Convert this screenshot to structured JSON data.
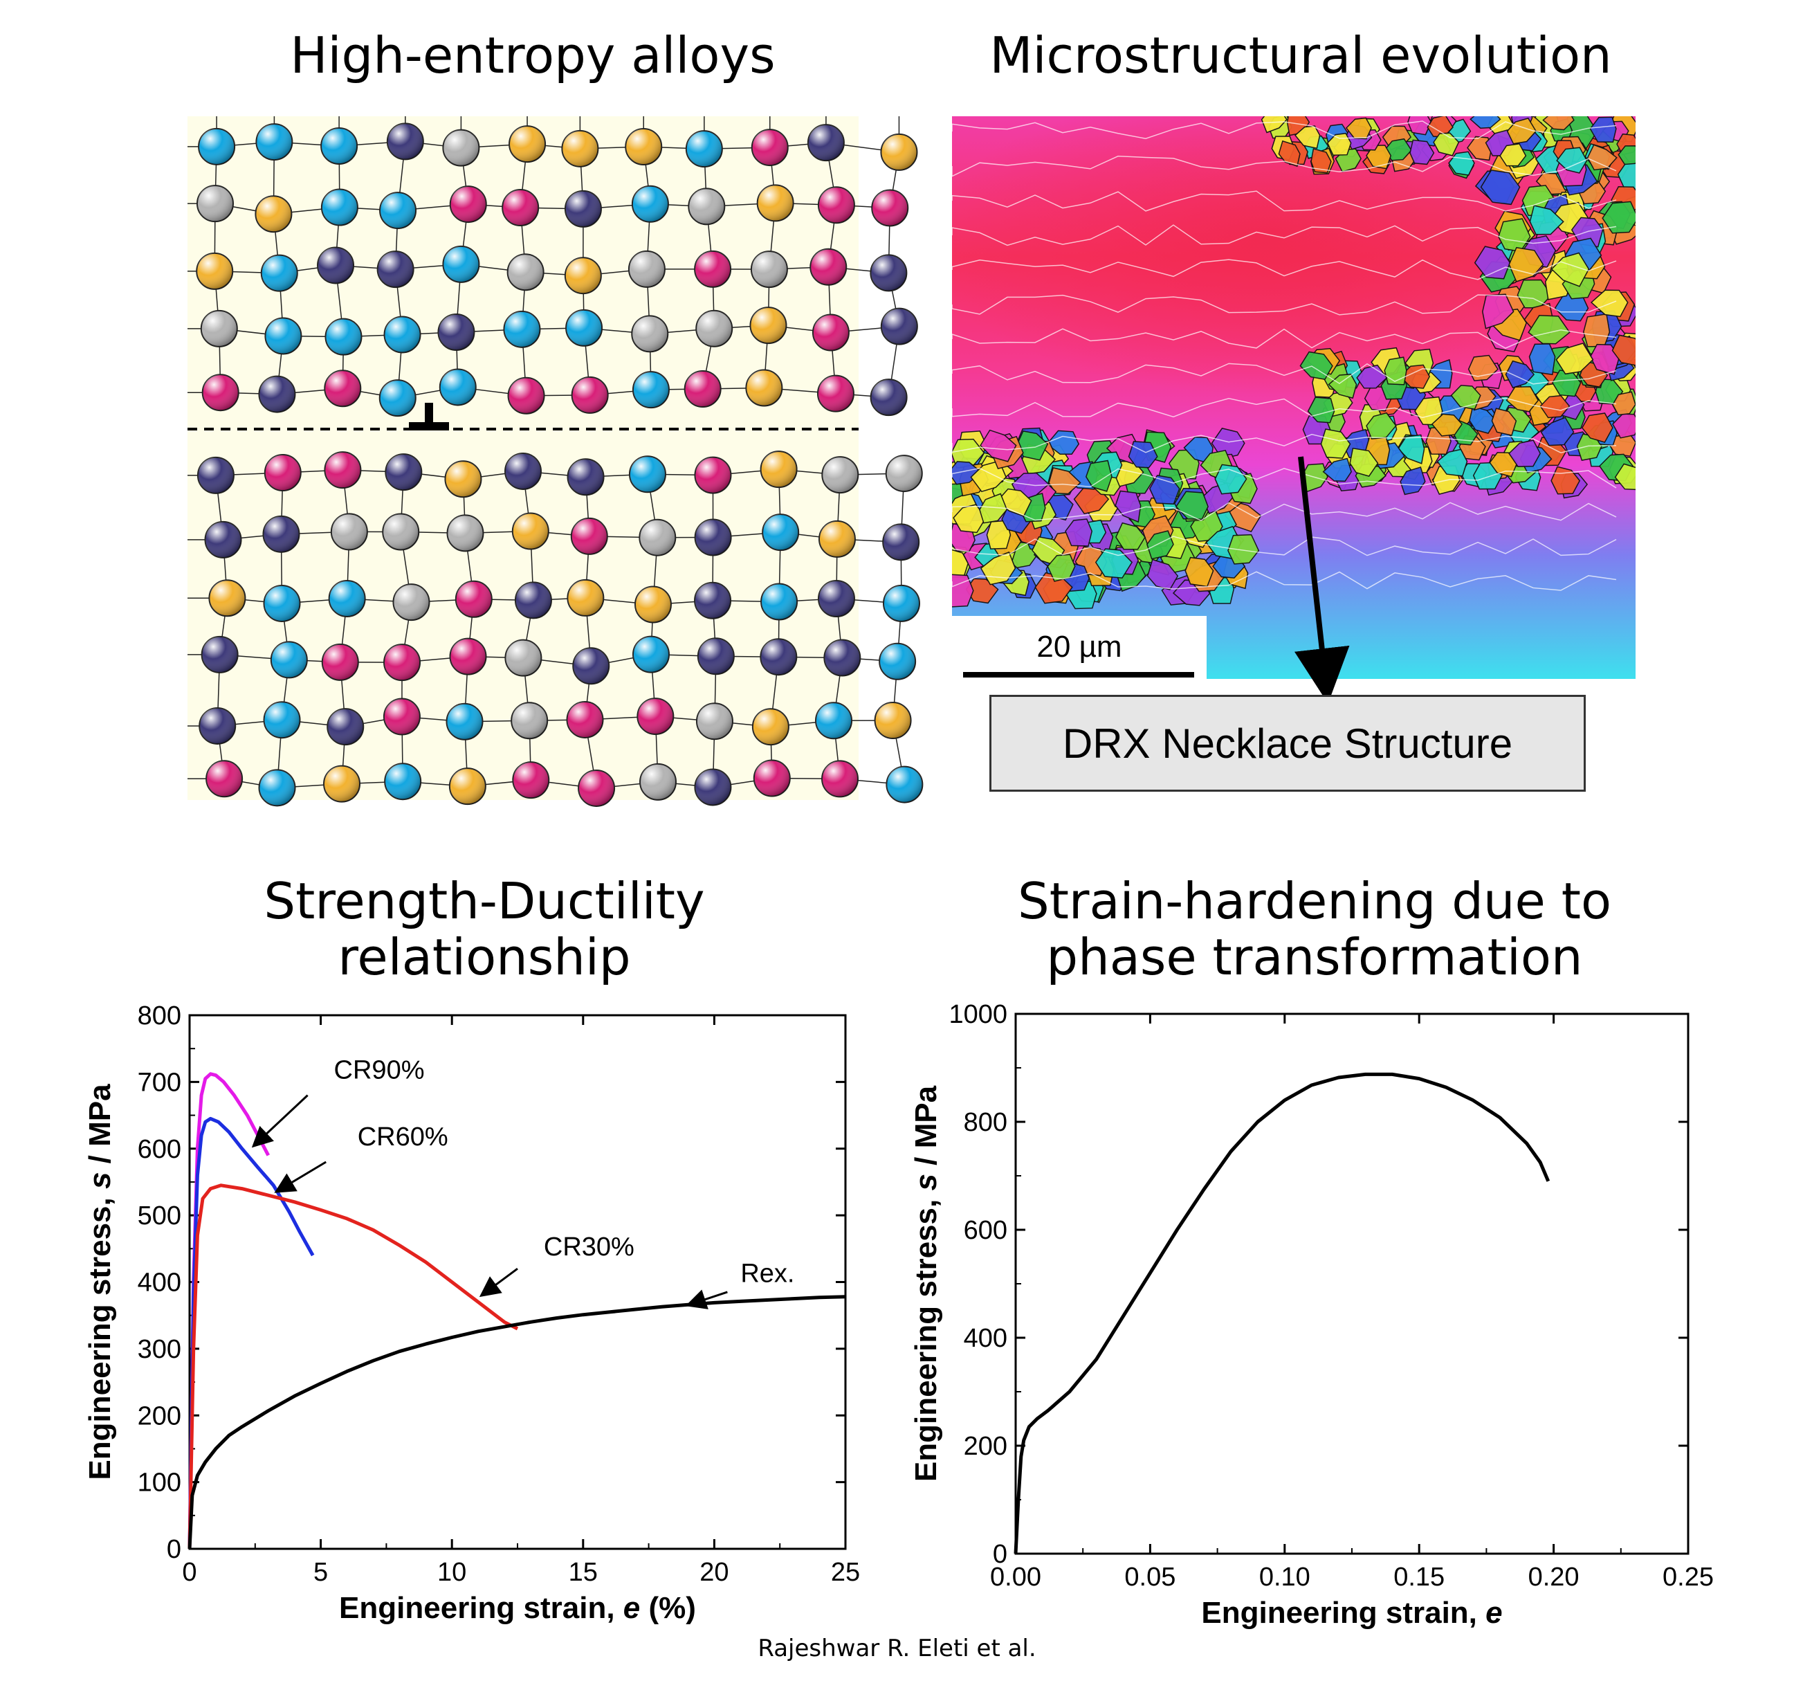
{
  "panels": {
    "top_left_title": "High-entropy alloys",
    "top_right_title": "Microstructural evolution",
    "bottom_left_title": "Strength-Ductility relationship",
    "bottom_right_title": "Strain-hardening due to phase transformation"
  },
  "micrograph": {
    "scale_bar_label": "20 µm",
    "box_label": "DRX Necklace  Structure"
  },
  "lattice": {
    "background": "#fefde8",
    "atom_colors": [
      "#3e3a7a",
      "#12a6e0",
      "#d81f78",
      "#f2b230",
      "#b3b3b3"
    ]
  },
  "credit": "Rajeshwar R. Eleti et al.",
  "chart_data": [
    {
      "type": "line",
      "xlabel_pre": "Engineering strain, ",
      "xlabel_sym": "e",
      "xlabel_post": " (%)",
      "ylabel_pre": "Engineering stress, ",
      "ylabel_sym": "s",
      "ylabel_post": " / MPa",
      "xlim": [
        0,
        25
      ],
      "ylim": [
        0,
        800
      ],
      "xticks": [
        "0",
        "5",
        "10",
        "15",
        "20",
        "25"
      ],
      "yticks": [
        "0",
        "100",
        "200",
        "300",
        "400",
        "500",
        "600",
        "700",
        "800"
      ],
      "grid": false,
      "annotations": [
        "CR90%",
        "CR60%",
        "CR30%",
        "Rex."
      ],
      "series": [
        {
          "name": "CR90%",
          "color": "#e41ae8",
          "x": [
            0,
            0.15,
            0.3,
            0.45,
            0.6,
            0.8,
            1.0,
            1.3,
            1.7,
            2.2,
            2.6,
            3.0
          ],
          "y": [
            0,
            400,
            600,
            680,
            705,
            712,
            710,
            700,
            680,
            650,
            620,
            590
          ]
        },
        {
          "name": "CR60%",
          "color": "#1c2ee0",
          "x": [
            0,
            0.15,
            0.3,
            0.45,
            0.6,
            0.8,
            1.1,
            1.5,
            2.0,
            2.6,
            3.2,
            3.8,
            4.2,
            4.7
          ],
          "y": [
            0,
            380,
            560,
            620,
            640,
            645,
            640,
            625,
            600,
            572,
            545,
            505,
            475,
            440
          ]
        },
        {
          "name": "CR30%",
          "color": "#e3231e",
          "x": [
            0,
            0.15,
            0.3,
            0.5,
            0.8,
            1.2,
            2,
            3,
            4,
            5,
            6,
            7,
            8,
            9,
            10,
            11,
            12,
            12.5
          ],
          "y": [
            0,
            300,
            470,
            525,
            540,
            545,
            540,
            530,
            520,
            508,
            495,
            478,
            455,
            430,
            400,
            370,
            340,
            330
          ]
        },
        {
          "name": "Rex.",
          "color": "#000000",
          "x": [
            0,
            0.1,
            0.3,
            0.6,
            1,
            1.5,
            2,
            3,
            4,
            5,
            6,
            7,
            8,
            9,
            10,
            11,
            12,
            13,
            14,
            15,
            16,
            17,
            18,
            19,
            20,
            21,
            22,
            23,
            24,
            25
          ],
          "y": [
            0,
            80,
            110,
            130,
            150,
            170,
            183,
            207,
            229,
            248,
            266,
            282,
            296,
            307,
            317,
            326,
            333,
            340,
            346,
            351,
            355,
            359,
            363,
            366,
            369,
            371,
            373,
            375,
            377,
            378
          ]
        }
      ]
    },
    {
      "type": "line",
      "xlabel_pre": "Engineering strain, ",
      "xlabel_sym": "e",
      "xlabel_post": "",
      "ylabel_pre": "Engineering stress, ",
      "ylabel_sym": "s",
      "ylabel_post": " / MPa",
      "xlim": [
        0,
        0.25
      ],
      "ylim": [
        0,
        1000
      ],
      "xticks": [
        "0.00",
        "0.05",
        "0.10",
        "0.15",
        "0.20",
        "0.25"
      ],
      "yticks": [
        "0",
        "200",
        "400",
        "600",
        "800",
        "1000"
      ],
      "grid": false,
      "series": [
        {
          "color": "#000000",
          "x": [
            0,
            0.001,
            0.002,
            0.003,
            0.005,
            0.008,
            0.012,
            0.02,
            0.03,
            0.04,
            0.05,
            0.06,
            0.07,
            0.08,
            0.09,
            0.1,
            0.11,
            0.12,
            0.13,
            0.14,
            0.15,
            0.16,
            0.17,
            0.18,
            0.19,
            0.195,
            0.198
          ],
          "y": [
            0,
            100,
            180,
            210,
            235,
            250,
            265,
            300,
            360,
            440,
            520,
            600,
            675,
            745,
            800,
            840,
            868,
            882,
            888,
            888,
            880,
            864,
            840,
            808,
            760,
            725,
            690
          ]
        }
      ]
    }
  ]
}
